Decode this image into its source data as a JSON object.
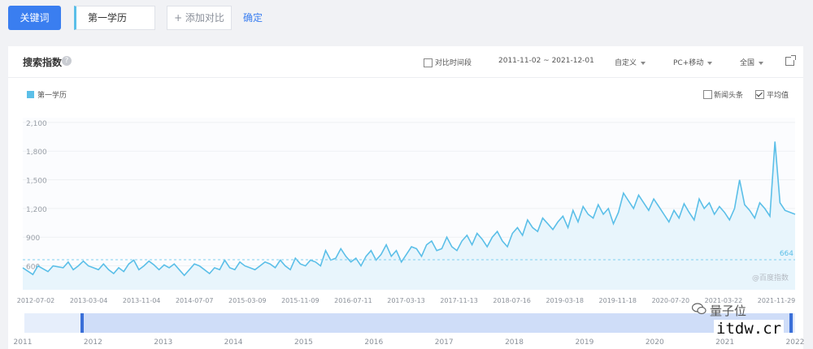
{
  "topbar": {
    "keyword_button": "关键词",
    "keyword_value": "第一学历",
    "add_compare": "+ 添加对比",
    "confirm": "确定"
  },
  "panel": {
    "title": "搜索指数",
    "help": "?",
    "compare_period": "对比时间段",
    "date_range": "2011-11-02 ~ 2021-12-01",
    "custom": "自定义",
    "device": "PC+移动",
    "region": "全国",
    "news_headline": "新闻头条",
    "average": "平均值",
    "legend": "第一学历",
    "source_mark": "@百度指数"
  },
  "chart_data": {
    "type": "line",
    "series": [
      {
        "name": "第一学历",
        "color": "#5bbfe8",
        "points": [
          [
            0,
            580
          ],
          [
            2,
            510
          ],
          [
            3,
            600
          ],
          [
            5,
            540
          ],
          [
            6,
            600
          ],
          [
            8,
            580
          ],
          [
            9,
            640
          ],
          [
            10,
            560
          ],
          [
            11,
            600
          ],
          [
            12,
            650
          ],
          [
            13,
            600
          ],
          [
            14,
            580
          ],
          [
            15,
            560
          ],
          [
            16,
            620
          ],
          [
            17,
            560
          ],
          [
            18,
            520
          ],
          [
            19,
            580
          ],
          [
            20,
            540
          ],
          [
            21,
            620
          ],
          [
            22,
            660
          ],
          [
            23,
            560
          ],
          [
            24,
            600
          ],
          [
            25,
            650
          ],
          [
            26,
            610
          ],
          [
            27,
            560
          ],
          [
            28,
            610
          ],
          [
            29,
            580
          ],
          [
            30,
            620
          ],
          [
            31,
            560
          ],
          [
            32,
            500
          ],
          [
            33,
            560
          ],
          [
            34,
            620
          ],
          [
            35,
            600
          ],
          [
            36,
            560
          ],
          [
            37,
            520
          ],
          [
            38,
            580
          ],
          [
            39,
            560
          ],
          [
            40,
            660
          ],
          [
            41,
            580
          ],
          [
            42,
            560
          ],
          [
            43,
            640
          ],
          [
            44,
            600
          ],
          [
            45,
            580
          ],
          [
            46,
            560
          ],
          [
            47,
            600
          ],
          [
            48,
            640
          ],
          [
            49,
            620
          ],
          [
            50,
            580
          ],
          [
            51,
            660
          ],
          [
            52,
            600
          ],
          [
            53,
            560
          ],
          [
            54,
            680
          ],
          [
            55,
            620
          ],
          [
            56,
            600
          ],
          [
            57,
            660
          ],
          [
            58,
            640
          ],
          [
            59,
            600
          ],
          [
            60,
            760
          ],
          [
            61,
            660
          ],
          [
            62,
            680
          ],
          [
            63,
            780
          ],
          [
            64,
            700
          ],
          [
            65,
            640
          ],
          [
            66,
            680
          ],
          [
            67,
            600
          ],
          [
            68,
            700
          ],
          [
            69,
            760
          ],
          [
            70,
            660
          ],
          [
            71,
            720
          ],
          [
            72,
            820
          ],
          [
            73,
            700
          ],
          [
            74,
            760
          ],
          [
            75,
            640
          ],
          [
            76,
            720
          ],
          [
            77,
            800
          ],
          [
            78,
            780
          ],
          [
            79,
            700
          ],
          [
            80,
            820
          ],
          [
            81,
            860
          ],
          [
            82,
            760
          ],
          [
            83,
            780
          ],
          [
            84,
            900
          ],
          [
            85,
            800
          ],
          [
            86,
            760
          ],
          [
            87,
            860
          ],
          [
            88,
            920
          ],
          [
            89,
            820
          ],
          [
            90,
            940
          ],
          [
            91,
            880
          ],
          [
            92,
            800
          ],
          [
            93,
            900
          ],
          [
            94,
            960
          ],
          [
            95,
            860
          ],
          [
            96,
            800
          ],
          [
            97,
            940
          ],
          [
            98,
            1000
          ],
          [
            99,
            920
          ],
          [
            100,
            1080
          ],
          [
            101,
            1000
          ],
          [
            102,
            960
          ],
          [
            103,
            1100
          ],
          [
            104,
            1040
          ],
          [
            105,
            980
          ],
          [
            106,
            1060
          ],
          [
            107,
            1120
          ],
          [
            108,
            1000
          ],
          [
            109,
            1180
          ],
          [
            110,
            1060
          ],
          [
            111,
            1220
          ],
          [
            112,
            1140
          ],
          [
            113,
            1100
          ],
          [
            114,
            1240
          ],
          [
            115,
            1140
          ],
          [
            116,
            1200
          ],
          [
            117,
            1040
          ],
          [
            118,
            1160
          ],
          [
            119,
            1360
          ],
          [
            120,
            1280
          ],
          [
            121,
            1200
          ],
          [
            122,
            1340
          ],
          [
            123,
            1260
          ],
          [
            124,
            1180
          ],
          [
            125,
            1300
          ],
          [
            126,
            1220
          ],
          [
            127,
            1140
          ],
          [
            128,
            1060
          ],
          [
            129,
            1180
          ],
          [
            130,
            1100
          ],
          [
            131,
            1250
          ],
          [
            132,
            1160
          ],
          [
            133,
            1080
          ],
          [
            134,
            1300
          ],
          [
            135,
            1200
          ],
          [
            136,
            1260
          ],
          [
            137,
            1140
          ],
          [
            138,
            1220
          ],
          [
            139,
            1160
          ],
          [
            140,
            1080
          ],
          [
            141,
            1200
          ],
          [
            142,
            1500
          ],
          [
            143,
            1240
          ],
          [
            144,
            1180
          ],
          [
            145,
            1100
          ],
          [
            146,
            1260
          ],
          [
            147,
            1200
          ],
          [
            148,
            1120
          ],
          [
            149,
            1900
          ],
          [
            150,
            1260
          ],
          [
            151,
            1180
          ],
          [
            152,
            1160
          ],
          [
            153,
            1140
          ]
        ],
        "x_visual_note": "dates 2012-07-02 to 2021-11-29",
        "values_summary": "weekly search index roughly 500-1900"
      }
    ],
    "x_ticks": [
      "2012-07-02",
      "2013-03-04",
      "2013-11-04",
      "2014-07-07",
      "2015-03-09",
      "2015-11-09",
      "2016-07-11",
      "2017-03-13",
      "2017-11-13",
      "2018-07-16",
      "2019-03-18",
      "2019-11-18",
      "2020-07-20",
      "2021-03-22",
      "2021-11-29"
    ],
    "y_ticks": [
      600,
      900,
      1200,
      1500,
      1800,
      2100
    ],
    "y_tick_labels": [
      "600",
      "900",
      "1,200",
      "1,500",
      "1,800",
      "2,100"
    ],
    "ylim": [
      350,
      2150
    ],
    "average_value": 664,
    "average_label": "664",
    "brush_years": [
      "2011",
      "2012",
      "2013",
      "2014",
      "2015",
      "2016",
      "2017",
      "2018",
      "2019",
      "2020",
      "2021",
      "2022"
    ],
    "grid": true,
    "legend_position": "top-left"
  },
  "watermark": {
    "line1": "量子位",
    "line2": "itdw.cr"
  }
}
